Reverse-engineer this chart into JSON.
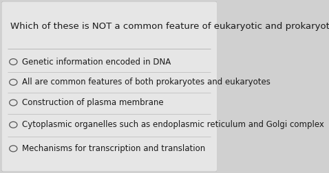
{
  "question": "Which of these is NOT a common feature of eukaryotic and prokaryotic cells?",
  "options": [
    "Genetic information encoded in DNA",
    "All are common features of both prokaryotes and eukaryotes",
    "Construction of plasma membrane",
    "Cytoplasmic organelles such as endoplasmic reticulum and Golgi complex",
    "Mechanisms for transcription and translation"
  ],
  "bg_color": "#d0d0d0",
  "card_color": "#e6e6e6",
  "text_color": "#1a1a1a",
  "divider_color": "#b8b8b8",
  "question_fontsize": 9.5,
  "option_fontsize": 8.5,
  "circle_color": "#555555",
  "figsize": [
    4.78,
    2.52
  ],
  "dpi": 100
}
